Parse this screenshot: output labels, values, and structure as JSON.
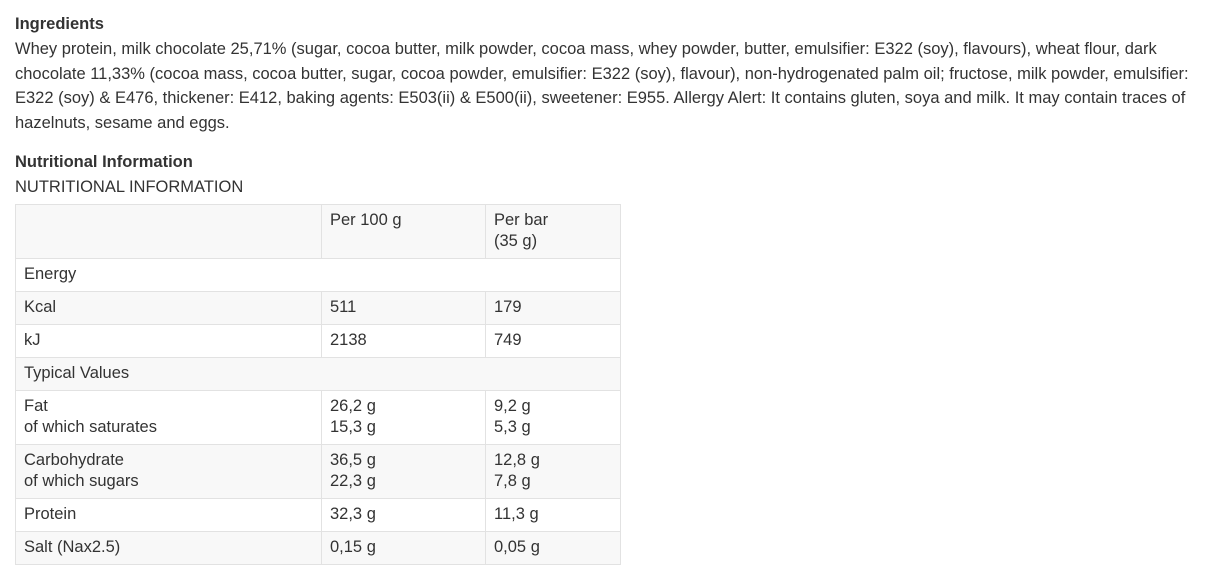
{
  "colors": {
    "text": "#333333",
    "table_border": "#e2e2e2",
    "row_stripe": "#f8f8f8",
    "background": "#ffffff"
  },
  "ingredients": {
    "heading": "Ingredients",
    "text": "Whey protein, milk chocolate 25,71% (sugar, cocoa butter, milk powder, cocoa mass, whey powder, butter, emulsifier: E322 (soy), flavours), wheat flour, dark chocolate 11,33% (cocoa mass, cocoa butter, sugar, cocoa powder, emulsifier: E322 (soy), flavour), non-hydrogenated palm oil; fructose, milk powder, emulsifier: E322 (soy) & E476, thickener: E412, baking agents: E503(ii) & E500(ii), sweetener: E955. Allergy Alert: It contains gluten, soya and milk. It may contain traces of hazelnuts, sesame and eggs."
  },
  "nutrition": {
    "heading": "Nutritional Information",
    "subheading": "NUTRITIONAL INFORMATION",
    "table": {
      "columns": [
        "",
        "Per 100 g",
        "Per bar\n(35 g)"
      ],
      "rows": [
        {
          "type": "section",
          "label": "Energy"
        },
        {
          "type": "data",
          "label": "Kcal",
          "per100": "511",
          "perbar": "179"
        },
        {
          "type": "data",
          "label": "kJ",
          "per100": "2138",
          "perbar": "749"
        },
        {
          "type": "section",
          "label": "Typical Values"
        },
        {
          "type": "data",
          "label": "Fat\nof which saturates",
          "per100": "26,2 g\n15,3 g",
          "perbar": "9,2 g\n5,3 g"
        },
        {
          "type": "data",
          "label": "Carbohydrate\nof which sugars",
          "per100": "36,5 g\n22,3 g",
          "perbar": "12,8 g\n7,8 g"
        },
        {
          "type": "data",
          "label": "Protein",
          "per100": "32,3 g",
          "perbar": "11,3 g"
        },
        {
          "type": "data",
          "label": "Salt (Nax2.5)",
          "per100": "0,15 g",
          "perbar": "0,05 g"
        }
      ]
    }
  }
}
